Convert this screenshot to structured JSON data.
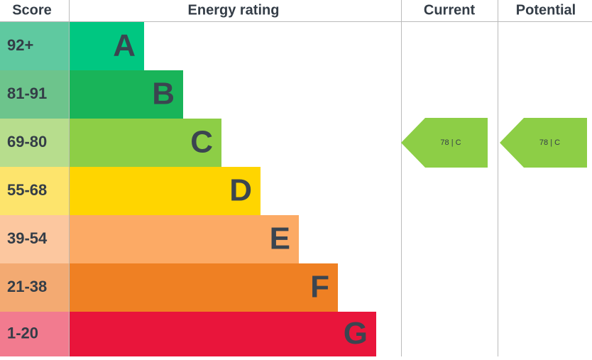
{
  "header": {
    "score": "Score",
    "rating": "Energy rating",
    "current": "Current",
    "potential": "Potential"
  },
  "bands": [
    {
      "score": "92+",
      "letter": "A",
      "color": "#00c781",
      "score_color": "#5fc9a0"
    },
    {
      "score": "81-91",
      "letter": "B",
      "color": "#19b459",
      "score_color": "#6dc48c"
    },
    {
      "score": "69-80",
      "letter": "C",
      "color": "#8dce46",
      "score_color": "#b7dd8d"
    },
    {
      "score": "55-68",
      "letter": "D",
      "color": "#ffd500",
      "score_color": "#fde46c"
    },
    {
      "score": "39-54",
      "letter": "E",
      "color": "#fcaa65",
      "score_color": "#fcc79f"
    },
    {
      "score": "21-38",
      "letter": "F",
      "color": "#ef8023",
      "score_color": "#f3aa72"
    },
    {
      "score": "1-20",
      "letter": "G",
      "color": "#e9153b",
      "score_color": "#f27b8f"
    }
  ],
  "current": {
    "label": "78 | C",
    "color": "#8dce46"
  },
  "potential": {
    "label": "78 | C",
    "color": "#8dce46"
  }
}
